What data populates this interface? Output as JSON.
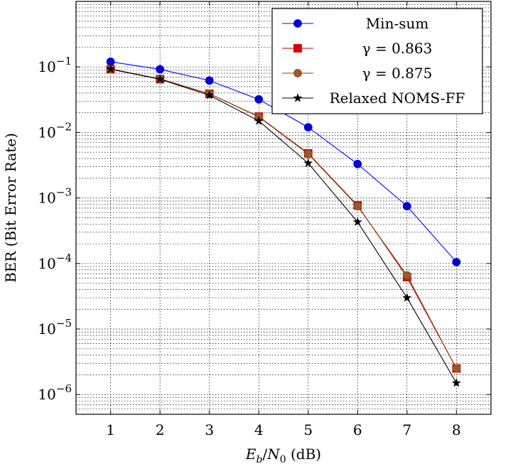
{
  "chart_data": {
    "type": "line",
    "title": "",
    "xlabel": "E_b/N_0 (dB)",
    "ylabel": "BER (Bit Error Rate)",
    "x": [
      1,
      2,
      3,
      4,
      5,
      6,
      7,
      8
    ],
    "xlim": [
      0.3,
      8.7
    ],
    "ylim": [
      5e-07,
      1.0
    ],
    "yscale": "log",
    "grid": true,
    "x_ticks": [
      "1",
      "2",
      "3",
      "4",
      "5",
      "6",
      "7",
      "8"
    ],
    "y_ticks": [
      {
        "base": "10",
        "exp": "−1",
        "value": 0.1
      },
      {
        "base": "10",
        "exp": "−2",
        "value": 0.01
      },
      {
        "base": "10",
        "exp": "−3",
        "value": 0.001
      },
      {
        "base": "10",
        "exp": "−4",
        "value": 0.0001
      },
      {
        "base": "10",
        "exp": "−5",
        "value": 1e-05
      },
      {
        "base": "10",
        "exp": "−6",
        "value": 1e-06
      }
    ],
    "legend_position": "top-right",
    "series": [
      {
        "name": "Min-sum",
        "color": "#0000ff",
        "marker": "circle",
        "marker_color": "#0000cc",
        "values": [
          0.12,
          0.092,
          0.062,
          0.032,
          0.012,
          0.0033,
          0.00075,
          0.000105
        ]
      },
      {
        "name": "γ = 0.863",
        "color": "#cc0000",
        "marker": "square",
        "marker_color": "#dd0000",
        "values": [
          0.092,
          0.065,
          0.039,
          0.0175,
          0.0048,
          0.00077,
          6.2e-05,
          2.5e-06
        ]
      },
      {
        "name": "γ = 0.875",
        "color": "#8b4513",
        "marker": "circle",
        "marker_color": "#9a5a2a",
        "values": [
          0.093,
          0.066,
          0.039,
          0.0173,
          0.0047,
          0.00075,
          6.6e-05,
          2.5e-06
        ]
      },
      {
        "name": "Relaxed NOMS-FF",
        "color": "#000000",
        "marker": "star",
        "marker_color": "#000000",
        "values": [
          0.093,
          0.065,
          0.037,
          0.015,
          0.0034,
          0.00043,
          3e-05,
          1.5e-06
        ]
      }
    ]
  }
}
